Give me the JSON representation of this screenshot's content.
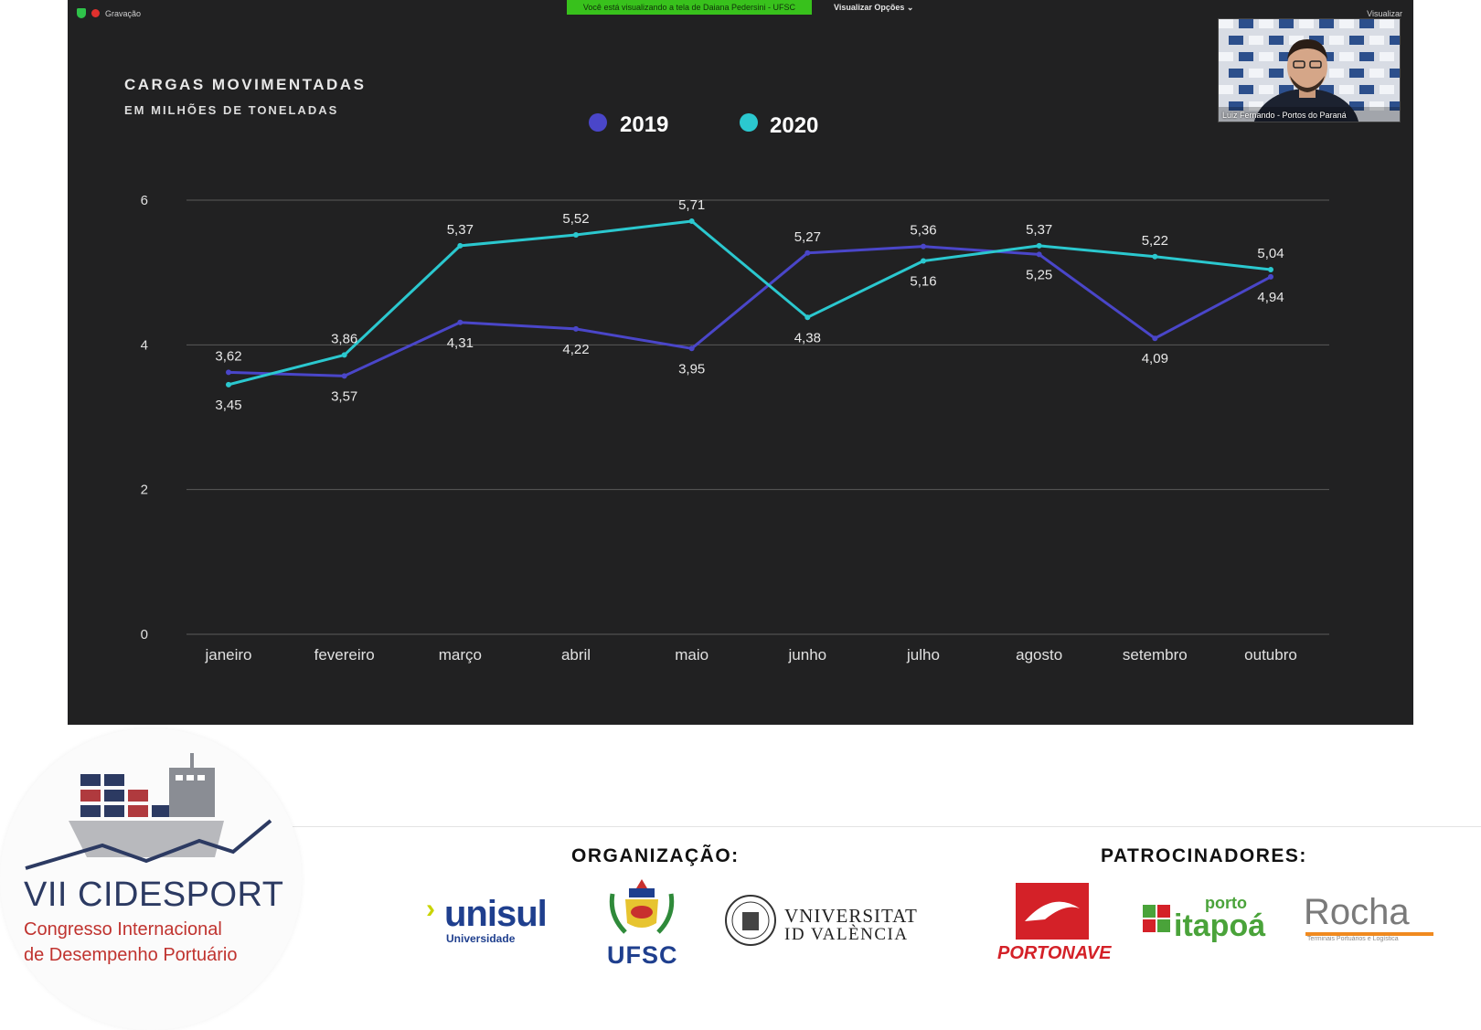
{
  "topbar": {
    "recording_label": "Gravação",
    "viewing_banner": "Você está visualizando a tela de Daiana Pedersini - UFSC",
    "view_options": "Visualizar Opções ⌄",
    "view_right": "Visualizar"
  },
  "webcam": {
    "name": "Luiz Fernando - Portos do Paraná"
  },
  "colors": {
    "series_2019": "#4a46c9",
    "series_2020": "#2bc8cf",
    "background": "#212122",
    "banner": "#38c11c"
  },
  "chart_data": {
    "type": "line",
    "title": "CARGAS MOVIMENTADAS",
    "subtitle": "EM MILHÕES DE TONELADAS",
    "categories": [
      "janeiro",
      "fevereiro",
      "março",
      "abril",
      "maio",
      "junho",
      "julho",
      "agosto",
      "setembro",
      "outubro"
    ],
    "series": [
      {
        "name": "2019",
        "values": [
          3.62,
          3.57,
          4.31,
          4.22,
          3.95,
          5.27,
          5.36,
          5.25,
          4.09,
          4.94
        ],
        "labels": [
          "3,62",
          "3,57",
          "4,31",
          "4,22",
          "3,95",
          "5,27",
          "5,36",
          "5,25",
          "4,09",
          "4,94"
        ]
      },
      {
        "name": "2020",
        "values": [
          3.45,
          3.86,
          5.37,
          5.52,
          5.71,
          4.38,
          5.16,
          5.37,
          5.22,
          5.04
        ],
        "labels": [
          "3,45",
          "3,86",
          "5,37",
          "5,52",
          "5,71",
          "4,38",
          "5,16",
          "5,37",
          "5,22",
          "5,04"
        ]
      }
    ],
    "yticks": [
      "0",
      "2",
      "4",
      "6"
    ],
    "ylim": [
      0,
      6
    ],
    "grid": true,
    "legend": "top-center"
  },
  "footer": {
    "event_title": "VII CIDESPORT",
    "event_sub1": "Congresso Internacional",
    "event_sub2": "de Desempenho Portuário",
    "organizacao": "ORGANIZAÇÃO:",
    "patrocinadores": "PATROCINADORES:",
    "logos": {
      "unisul": "unisul",
      "unisul_sub": "Universidade",
      "ufsc": "UFSC",
      "valencia_1": "VNIVERSITAT",
      "valencia_2": "ID VALÈNCIA",
      "portonave": "PORTONAVE",
      "itapoa_top": "porto",
      "itapoa": "itapoá",
      "rocha": "Rocha",
      "rocha_sub": "Terminais Portuários e Logística"
    }
  }
}
